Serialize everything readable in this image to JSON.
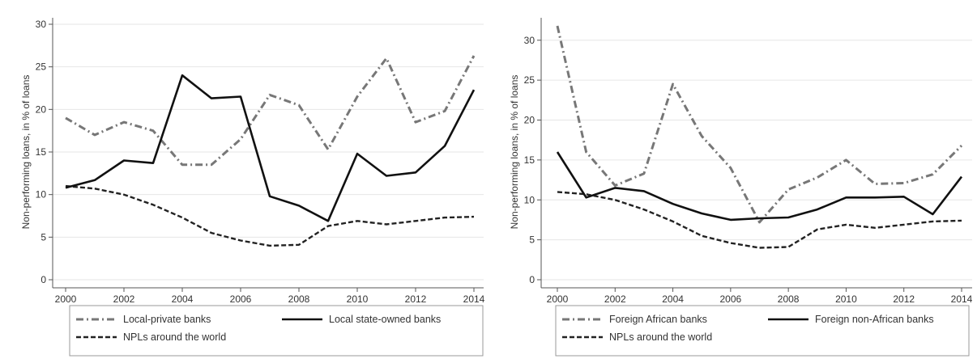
{
  "chart_data": [
    {
      "type": "line",
      "title": "",
      "xlabel": "",
      "ylabel": "Non-performing loans, in % of loans",
      "xlim": [
        2000,
        2014
      ],
      "ylim": [
        0,
        30
      ],
      "x_ticks": [
        "2000",
        "2002",
        "2004",
        "2006",
        "2008",
        "2010",
        "2012",
        "2014"
      ],
      "y_ticks": [
        "0",
        "5",
        "10",
        "15",
        "20",
        "25",
        "30"
      ],
      "grid": "horizontal",
      "legend_position": "bottom",
      "x": [
        2000,
        2001,
        2002,
        2003,
        2004,
        2005,
        2006,
        2007,
        2008,
        2009,
        2010,
        2011,
        2012,
        2013,
        2014
      ],
      "series": [
        {
          "name": "Local-private banks",
          "style": "dash-dot",
          "color": "#777777",
          "values": [
            19.0,
            17.0,
            18.5,
            17.5,
            13.5,
            13.5,
            16.5,
            21.7,
            20.5,
            15.3,
            21.5,
            26.0,
            18.5,
            19.8,
            26.3
          ]
        },
        {
          "name": "Local state-owned banks",
          "style": "solid",
          "color": "#111111",
          "values": [
            10.8,
            11.7,
            14.0,
            13.7,
            24.0,
            21.3,
            21.5,
            9.8,
            8.7,
            6.9,
            14.8,
            12.2,
            12.6,
            15.7,
            22.3
          ]
        },
        {
          "name": "NPLs around the world",
          "style": "dashed",
          "color": "#222222",
          "values": [
            11.0,
            10.7,
            10.0,
            8.8,
            7.3,
            5.5,
            4.6,
            4.0,
            4.1,
            6.3,
            6.9,
            6.5,
            6.9,
            7.3,
            7.4
          ]
        }
      ]
    },
    {
      "type": "line",
      "title": "",
      "xlabel": "",
      "ylabel": "Non-performing loans, in % of loans",
      "xlim": [
        2000,
        2014
      ],
      "ylim": [
        0,
        32
      ],
      "x_ticks": [
        "2000",
        "2002",
        "2004",
        "2006",
        "2008",
        "2010",
        "2012",
        "2014"
      ],
      "y_ticks": [
        "0",
        "5",
        "10",
        "15",
        "20",
        "25",
        "30"
      ],
      "grid": "horizontal",
      "legend_position": "bottom",
      "x": [
        2000,
        2001,
        2002,
        2003,
        2004,
        2005,
        2006,
        2007,
        2008,
        2009,
        2010,
        2011,
        2012,
        2013,
        2014
      ],
      "series": [
        {
          "name": "Foreign African banks",
          "style": "dash-dot",
          "color": "#777777",
          "values": [
            31.8,
            16.0,
            11.8,
            13.3,
            24.5,
            18.0,
            14.0,
            7.2,
            11.3,
            12.8,
            15.0,
            12.0,
            12.1,
            13.2,
            16.8
          ]
        },
        {
          "name": "Foreign non-African banks",
          "style": "solid",
          "color": "#111111",
          "values": [
            16.0,
            10.3,
            11.5,
            11.1,
            9.5,
            8.3,
            7.5,
            7.7,
            7.8,
            8.8,
            10.3,
            10.3,
            10.4,
            8.2,
            12.9
          ]
        },
        {
          "name": "NPLs around the world",
          "style": "dashed",
          "color": "#222222",
          "values": [
            11.0,
            10.7,
            10.0,
            8.8,
            7.3,
            5.5,
            4.6,
            4.0,
            4.1,
            6.3,
            6.9,
            6.5,
            6.9,
            7.3,
            7.4
          ]
        }
      ]
    }
  ]
}
